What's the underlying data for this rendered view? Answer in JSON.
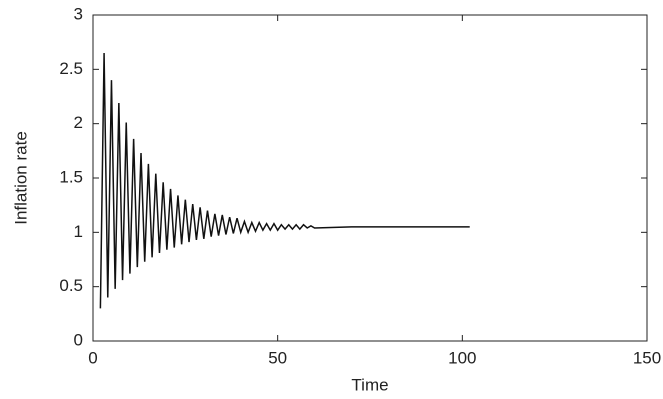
{
  "chart_data": {
    "type": "line",
    "xlabel": "Time",
    "ylabel": "Inflation rate",
    "x": [
      2,
      3,
      4,
      5,
      6,
      7,
      8,
      9,
      10,
      11,
      12,
      13,
      14,
      15,
      16,
      17,
      18,
      19,
      20,
      21,
      22,
      23,
      24,
      25,
      26,
      27,
      28,
      29,
      30,
      31,
      32,
      33,
      34,
      35,
      36,
      37,
      38,
      39,
      40,
      41,
      42,
      43,
      44,
      45,
      46,
      47,
      48,
      49,
      50,
      51,
      52,
      53,
      54,
      55,
      56,
      57,
      58,
      59,
      60,
      70,
      102
    ],
    "series": [
      {
        "color": "#111111",
        "values": [
          0.3,
          2.65,
          0.4,
          2.4,
          0.48,
          2.19,
          0.56,
          2.01,
          0.62,
          1.86,
          0.68,
          1.73,
          0.73,
          1.63,
          0.77,
          1.54,
          0.81,
          1.46,
          0.84,
          1.4,
          0.86,
          1.34,
          0.89,
          1.3,
          0.91,
          1.26,
          0.93,
          1.23,
          0.94,
          1.2,
          0.96,
          1.17,
          0.97,
          1.16,
          0.98,
          1.14,
          0.99,
          1.13,
          1.0,
          1.1,
          1.0,
          1.09,
          1.01,
          1.09,
          1.02,
          1.08,
          1.02,
          1.08,
          1.02,
          1.07,
          1.03,
          1.07,
          1.03,
          1.07,
          1.03,
          1.07,
          1.04,
          1.06,
          1.04,
          1.05,
          1.05
        ]
      }
    ],
    "xlim": [
      0,
      150
    ],
    "xticks": [
      0,
      50,
      100,
      150
    ],
    "ylim": [
      0,
      3
    ],
    "yticks": [
      0,
      0.5,
      1,
      1.5,
      2,
      2.5,
      3
    ],
    "grid": false
  }
}
